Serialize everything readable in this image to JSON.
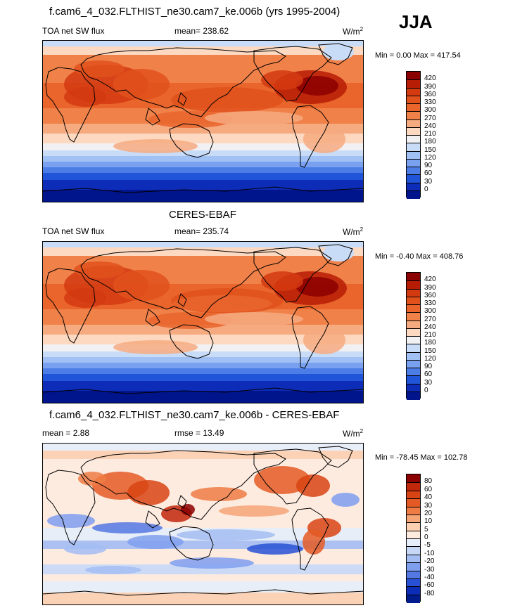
{
  "top_title": "f.cam6_4_032.FLTHIST_ne30.cam7_ke.006b (yrs 1995-2004)",
  "season": "JJA",
  "panels": [
    {
      "title": "",
      "left_label": "TOA net SW flux",
      "center_label": "mean= 238.62",
      "units": "W/m",
      "units_sup": "2",
      "minmax": "Min =   0.00 Max = 417.54",
      "colorbar_levels": [
        "420",
        "390",
        "360",
        "330",
        "300",
        "270",
        "240",
        "210",
        "180",
        "150",
        "120",
        "90",
        "60",
        "30",
        "0"
      ]
    },
    {
      "title": "CERES-EBAF",
      "left_label": "TOA net SW flux",
      "center_label": "mean= 235.74",
      "units": "W/m",
      "units_sup": "2",
      "minmax": "Min =  -0.40 Max = 408.76",
      "colorbar_levels": [
        "420",
        "390",
        "360",
        "330",
        "300",
        "270",
        "240",
        "210",
        "180",
        "150",
        "120",
        "90",
        "60",
        "30",
        "0"
      ]
    },
    {
      "title": "f.cam6_4_032.FLTHIST_ne30.cam7_ke.006b - CERES-EBAF",
      "left_label": "mean =   2.88",
      "center_label": "rmse =  13.49",
      "units": "W/m",
      "units_sup": "2",
      "minmax": "Min = -78.45 Max = 102.78",
      "colorbar_levels": [
        "80",
        "60",
        "40",
        "30",
        "20",
        "10",
        "5",
        "0",
        "-5",
        "-10",
        "-20",
        "-30",
        "-40",
        "-60",
        "-80"
      ]
    }
  ],
  "colors": {
    "abs_scale": [
      "#8b0000",
      "#b71c05",
      "#d43a10",
      "#e1511c",
      "#e9652c",
      "#f08149",
      "#f6aa80",
      "#fcd9c0",
      "#f1f1f3",
      "#c9dcf7",
      "#a1c1f5",
      "#79a1ef",
      "#4c7de7",
      "#2155d9",
      "#0d2db8",
      "#00148c"
    ],
    "diff_scale": [
      "#8b0000",
      "#c1270a",
      "#d84414",
      "#e45a24",
      "#ef7c45",
      "#f6a577",
      "#fbcfb0",
      "#fdebe0",
      "#e6eefb",
      "#c7d8f7",
      "#a3bdf3",
      "#7f9fee",
      "#5478e3",
      "#2851d5",
      "#0b2db8",
      "#001b8c"
    ]
  }
}
